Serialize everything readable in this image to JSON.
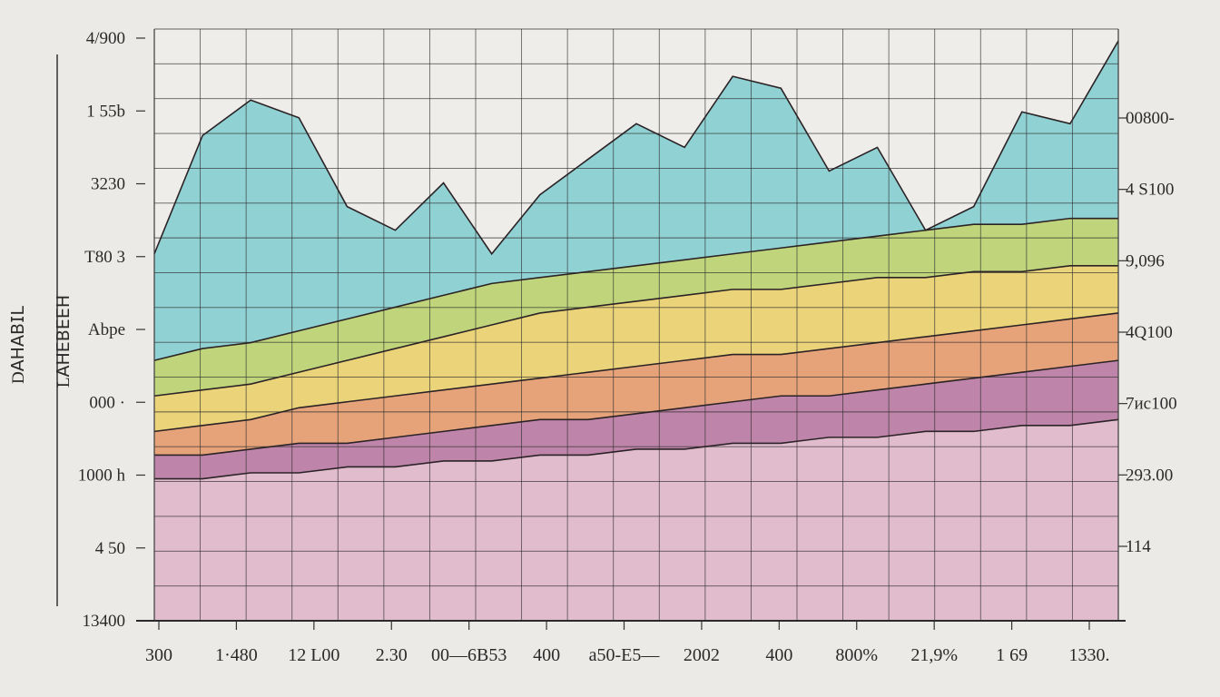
{
  "chart_data": {
    "type": "area",
    "ylabel": "D𝖠𝖧𝖠𝖡𝖨𝖫",
    "ylabel_secondary": "L𝖠𝖧𝖤𝖡𝖤𝖤𝖧",
    "left_tick_labels": [
      "4/900",
      "1 55b",
      "3230",
      "T80 3",
      "Abpe",
      "000 ·",
      "1000 h",
      "4 50",
      "13400"
    ],
    "right_tick_labels": [
      "00800-",
      "4 S100",
      "9,096",
      "4Q100",
      "7ис100",
      "293.00",
      "114"
    ],
    "bottom_tick_labels": [
      "300",
      "1·480",
      "12 L00",
      "2.30",
      "00—6B53",
      "400",
      "a50-E5—",
      "2002",
      "400",
      "800%",
      "21,9%",
      "1 69",
      "1330."
    ],
    "x": [
      0,
      5,
      10,
      15,
      20,
      25,
      30,
      35,
      40,
      45,
      50,
      55,
      60,
      65,
      70,
      75,
      80,
      85,
      90,
      95,
      100
    ],
    "ylim": [
      0,
      100
    ],
    "grid": true,
    "series": [
      {
        "color": "#7fcbcf",
        "values": [
          62,
          82,
          88,
          85,
          70,
          66,
          74,
          62,
          72,
          78,
          84,
          80,
          92,
          90,
          76,
          80,
          66,
          70,
          86,
          84,
          98
        ]
      },
      {
        "color": "#c9d66b",
        "values": [
          44,
          46,
          47,
          49,
          51,
          53,
          55,
          57,
          58,
          59,
          60,
          61,
          62,
          63,
          64,
          65,
          66,
          67,
          67,
          68,
          68
        ]
      },
      {
        "color": "#f2d27a",
        "values": [
          38,
          39,
          40,
          42,
          44,
          46,
          48,
          50,
          52,
          53,
          54,
          55,
          56,
          56,
          57,
          58,
          58,
          59,
          59,
          60,
          60
        ]
      },
      {
        "color": "#e59a7a",
        "values": [
          32,
          33,
          34,
          36,
          37,
          38,
          39,
          40,
          41,
          42,
          43,
          44,
          45,
          45,
          46,
          47,
          48,
          49,
          50,
          51,
          52
        ]
      },
      {
        "color": "#b67fb2",
        "values": [
          28,
          28,
          29,
          30,
          30,
          31,
          32,
          33,
          34,
          34,
          35,
          36,
          37,
          38,
          38,
          39,
          40,
          41,
          42,
          43,
          44
        ]
      },
      {
        "color": "#e8c6d4",
        "values": [
          24,
          24,
          25,
          25,
          26,
          26,
          27,
          27,
          28,
          28,
          29,
          29,
          30,
          30,
          31,
          31,
          32,
          32,
          33,
          33,
          34
        ]
      }
    ]
  }
}
